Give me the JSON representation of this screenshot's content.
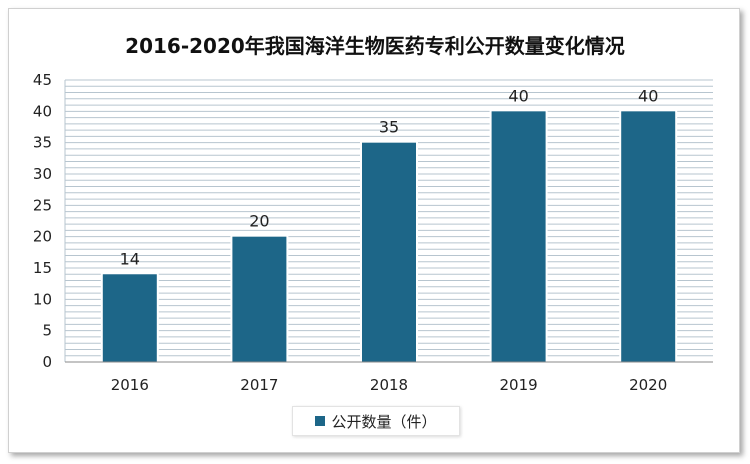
{
  "chart_data": {
    "type": "bar",
    "title": "2016-2020年我国海洋生物医药专利公开数量变化情况",
    "categories": [
      "2016",
      "2017",
      "2018",
      "2019",
      "2020"
    ],
    "series": [
      {
        "name": "公开数量（件）",
        "values": [
          14,
          20,
          35,
          40,
          40
        ]
      }
    ],
    "ylim": [
      0,
      45
    ],
    "yticks": [
      0,
      5,
      10,
      15,
      20,
      25,
      30,
      35,
      40,
      45
    ],
    "data_labels": true,
    "grid": true,
    "legend": "bottom-center",
    "colors": {
      "bar": "#1d6688",
      "grid": "#b7c5cf",
      "plot_bg": "#ffffff"
    }
  }
}
